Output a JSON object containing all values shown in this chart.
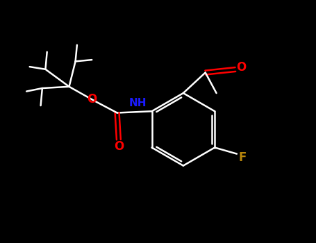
{
  "background_color": "#000000",
  "bond_color": "#ffffff",
  "atom_colors": {
    "O": "#ff0000",
    "N": "#1a1aff",
    "F": "#b8860b",
    "H": "#ffffff",
    "C": "#ffffff"
  },
  "title": "",
  "figsize": [
    4.55,
    3.5
  ],
  "dpi": 100,
  "lw": 1.8,
  "fs": 11
}
